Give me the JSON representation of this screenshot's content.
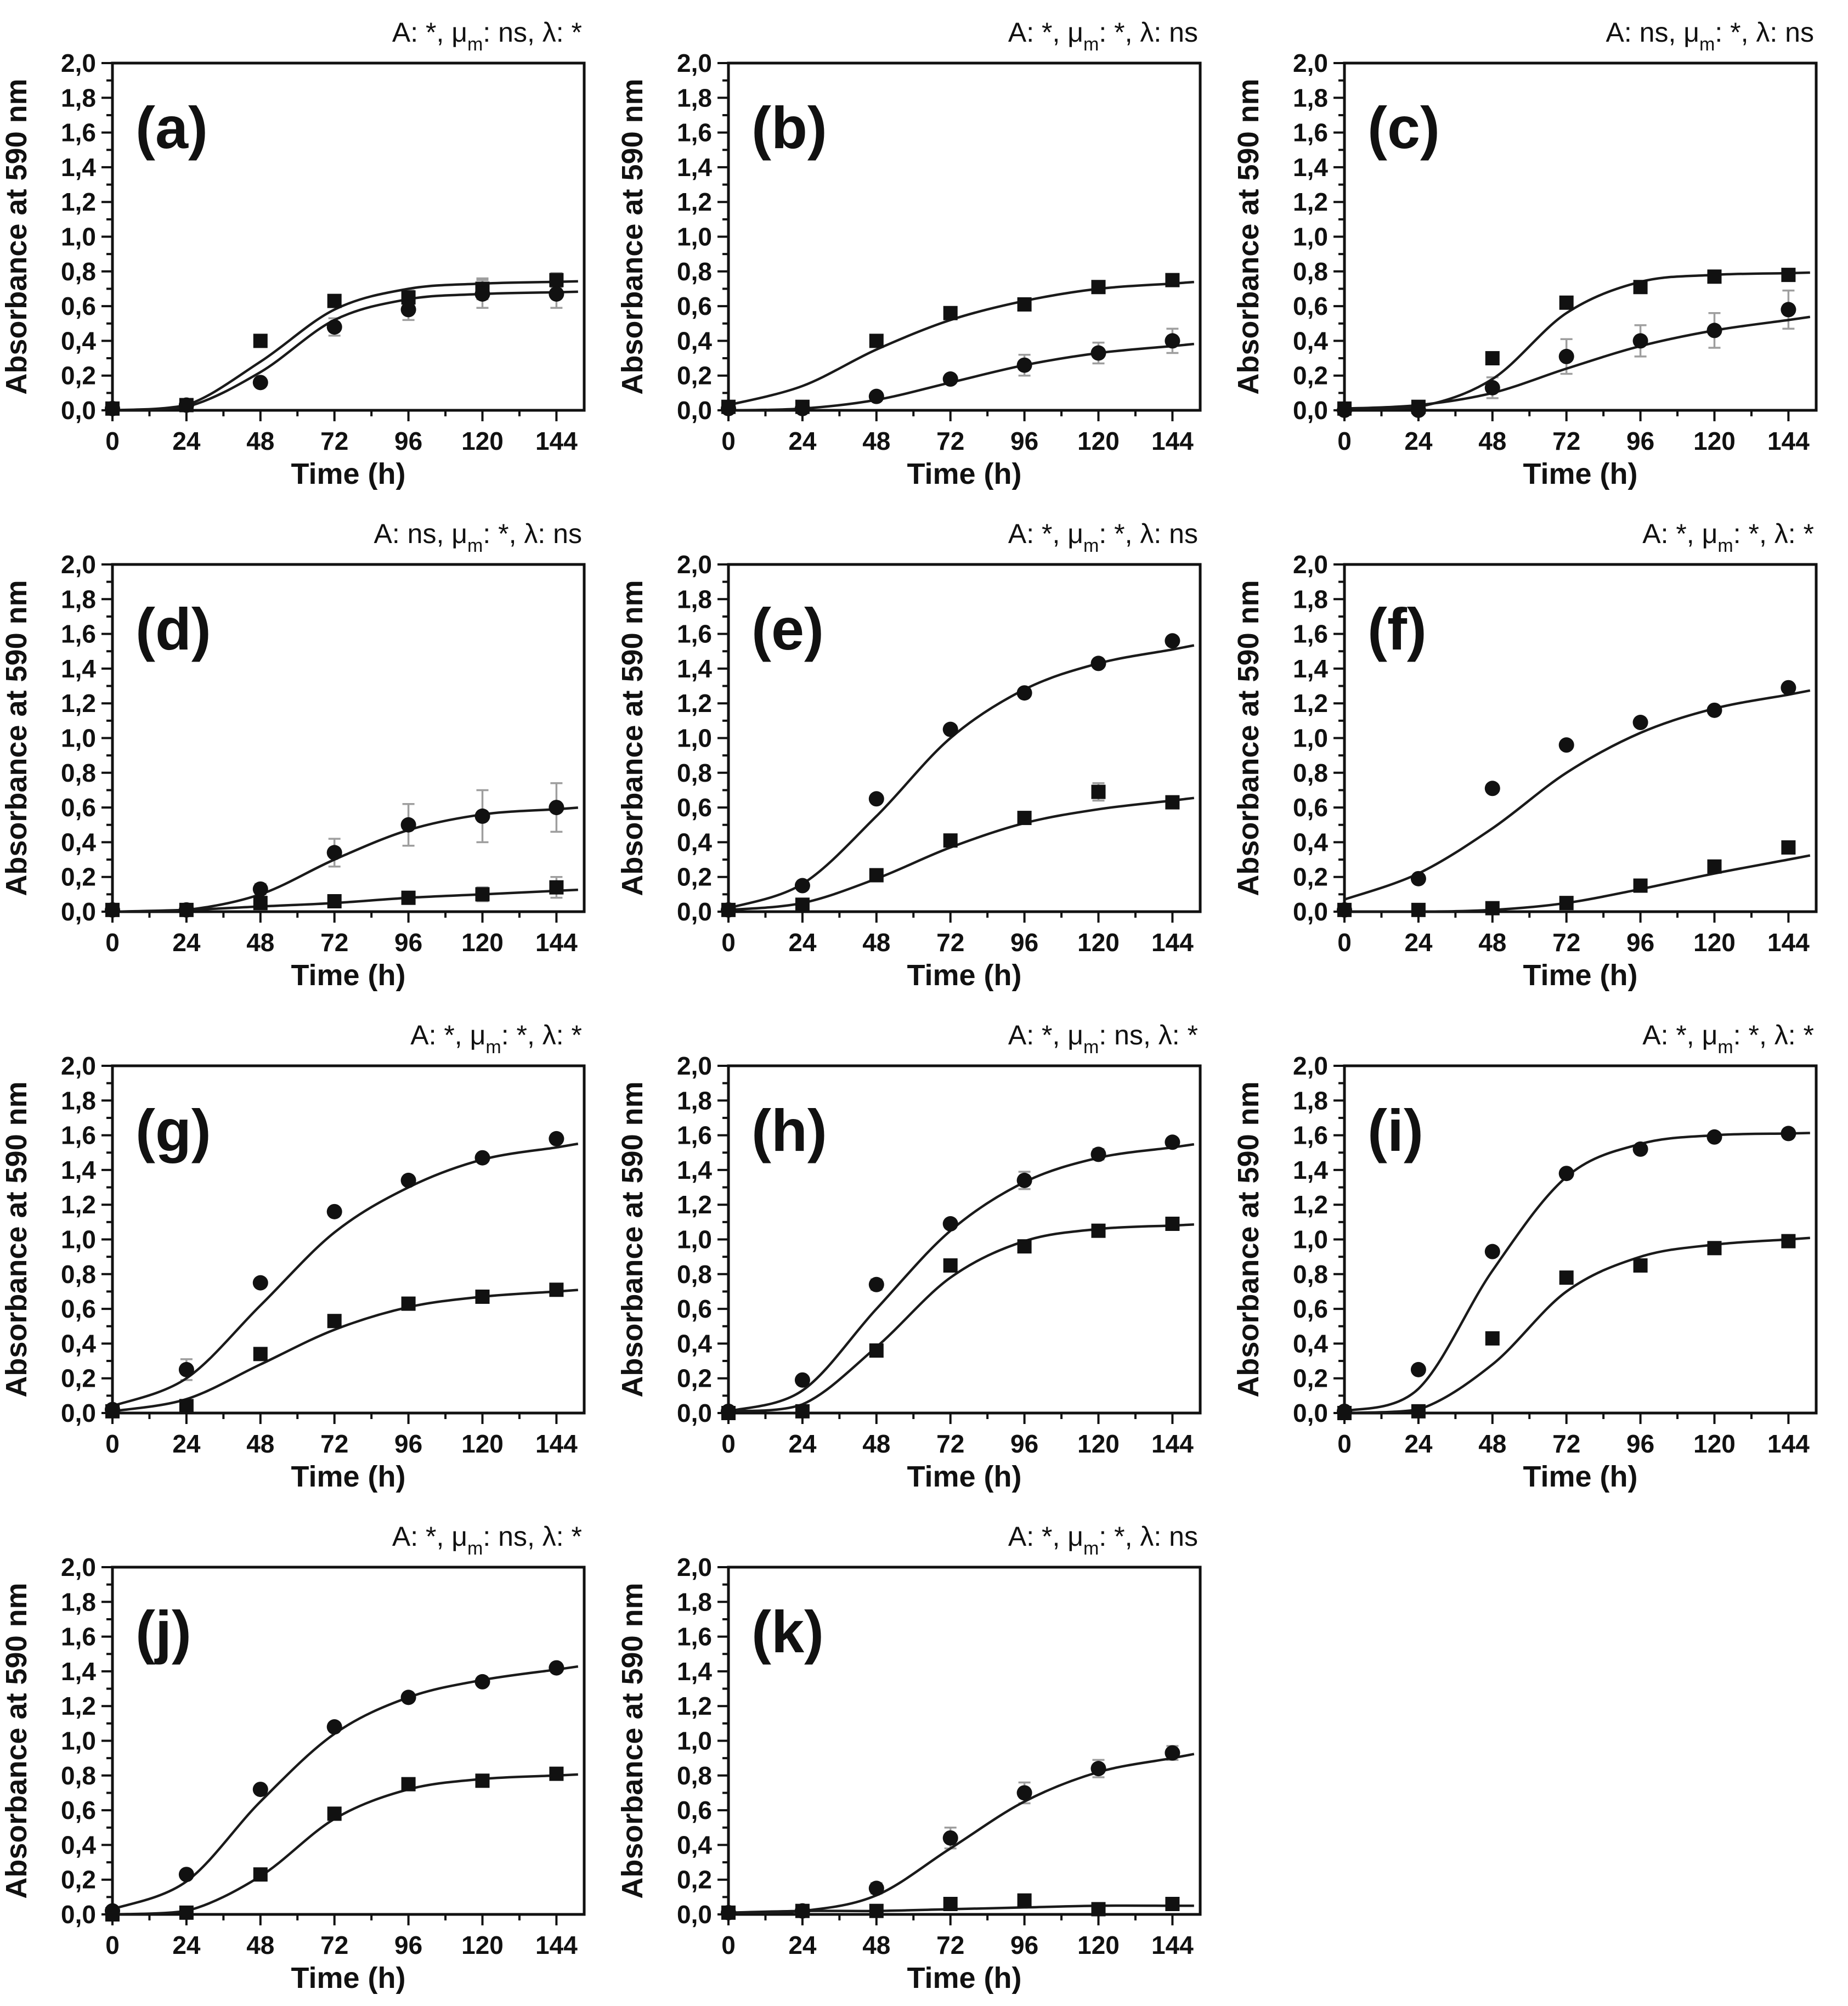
{
  "figure": {
    "background": "#ffffff",
    "ink_color": "#111111",
    "curve_color": "#1a1a1a",
    "error_bar_color": "#9e9e9e",
    "title_parts": {
      "a": "A",
      "mu": "μ",
      "mu_sub": "m",
      "lambda": "λ",
      "colon": ": ",
      "comma": ", "
    },
    "axes": {
      "ylabel": "Absorbance at 590 nm",
      "xlabel": "Time (h)",
      "y_tick_labels": [
        "0,0",
        "0,2",
        "0,4",
        "0,6",
        "0,8",
        "1,0",
        "1,2",
        "1,4",
        "1,6",
        "1,8",
        "2,0"
      ],
      "y_tick_values": [
        0,
        0.2,
        0.4,
        0.6,
        0.8,
        1.0,
        1.2,
        1.4,
        1.6,
        1.8,
        2.0
      ],
      "y_minor_values": [
        0.1,
        0.3,
        0.5,
        0.7,
        0.9,
        1.1,
        1.3,
        1.5,
        1.7,
        1.9
      ],
      "x_tick_labels": [
        "0",
        "24",
        "48",
        "72",
        "96",
        "120",
        "144"
      ],
      "x_tick_values": [
        0,
        24,
        48,
        72,
        96,
        120,
        144
      ],
      "x_minor_values": [
        12,
        36,
        60,
        84,
        108,
        132
      ]
    }
  },
  "chart_data": [
    {
      "type": "scatter",
      "panel": "(a)",
      "grid": [
        0,
        0
      ],
      "title": "A: *, μm: ns, λ: *",
      "significance": {
        "A": "*",
        "mu": "ns",
        "lambda": "*"
      },
      "xlabel": "Time (h)",
      "ylabel": "Absorbance at 590 nm",
      "xlim": [
        0,
        153
      ],
      "ylim": [
        0,
        2
      ],
      "x": [
        0,
        24,
        48,
        72,
        96,
        120,
        144
      ],
      "series": [
        {
          "name": "squares",
          "marker": "square",
          "values": [
            0.01,
            0.03,
            0.4,
            0.63,
            0.65,
            0.7,
            0.75
          ],
          "errors": [
            0,
            0,
            0,
            0,
            0.04,
            0.06,
            0.04
          ],
          "fit_curve": [
            0.0,
            0.03,
            0.28,
            0.58,
            0.7,
            0.73,
            0.74
          ]
        },
        {
          "name": "circles",
          "marker": "circle",
          "values": [
            0.01,
            0.03,
            0.16,
            0.48,
            0.58,
            0.67,
            0.67
          ],
          "errors": [
            0,
            0,
            0.02,
            0.05,
            0.06,
            0.08,
            0.08
          ],
          "fit_curve": [
            0.0,
            0.02,
            0.22,
            0.52,
            0.64,
            0.67,
            0.68
          ]
        }
      ]
    },
    {
      "type": "scatter",
      "panel": "(b)",
      "grid": [
        0,
        1
      ],
      "title": "A: *, μm: *, λ: ns",
      "significance": {
        "A": "*",
        "mu": "*",
        "lambda": "ns"
      },
      "xlabel": "Time (h)",
      "ylabel": "Absorbance at 590 nm",
      "xlim": [
        0,
        153
      ],
      "ylim": [
        0,
        2
      ],
      "x": [
        0,
        24,
        48,
        72,
        96,
        120,
        144
      ],
      "series": [
        {
          "name": "squares",
          "marker": "square",
          "values": [
            0.02,
            0.02,
            0.4,
            0.56,
            0.61,
            0.71,
            0.75
          ],
          "errors": [
            0,
            0,
            0,
            0,
            0.02,
            0,
            0.02
          ],
          "fit_curve": [
            0.03,
            0.14,
            0.35,
            0.52,
            0.63,
            0.7,
            0.73
          ]
        },
        {
          "name": "circles",
          "marker": "circle",
          "values": [
            0.01,
            0.01,
            0.08,
            0.18,
            0.26,
            0.33,
            0.4
          ],
          "errors": [
            0,
            0,
            0.01,
            0.02,
            0.06,
            0.06,
            0.07
          ],
          "fit_curve": [
            0.0,
            0.01,
            0.06,
            0.16,
            0.26,
            0.33,
            0.37
          ]
        }
      ]
    },
    {
      "type": "scatter",
      "panel": "(c)",
      "grid": [
        0,
        2
      ],
      "title": "A: ns, μm: *, λ: ns",
      "significance": {
        "A": "ns",
        "mu": "*",
        "lambda": "ns"
      },
      "xlabel": "Time (h)",
      "ylabel": "Absorbance at 590 nm",
      "xlim": [
        0,
        153
      ],
      "ylim": [
        0,
        2
      ],
      "x": [
        0,
        24,
        48,
        72,
        96,
        120,
        144
      ],
      "series": [
        {
          "name": "squares",
          "marker": "square",
          "values": [
            0.01,
            0.02,
            0.3,
            0.62,
            0.71,
            0.77,
            0.78
          ],
          "errors": [
            0,
            0,
            0.03,
            0.03,
            0.03,
            0.02,
            0.02
          ],
          "fit_curve": [
            0.01,
            0.02,
            0.18,
            0.56,
            0.74,
            0.78,
            0.79
          ]
        },
        {
          "name": "circles",
          "marker": "circle",
          "values": [
            0.0,
            0.0,
            0.13,
            0.31,
            0.4,
            0.46,
            0.58
          ],
          "errors": [
            0,
            0,
            0.06,
            0.1,
            0.09,
            0.1,
            0.11
          ],
          "fit_curve": [
            0.01,
            0.03,
            0.1,
            0.24,
            0.37,
            0.46,
            0.52
          ]
        }
      ]
    },
    {
      "type": "scatter",
      "panel": "(d)",
      "grid": [
        1,
        0
      ],
      "title": "A: ns, μm: *, λ: ns",
      "significance": {
        "A": "ns",
        "mu": "*",
        "lambda": "ns"
      },
      "xlabel": "Time (h)",
      "ylabel": "Absorbance at 590 nm",
      "xlim": [
        0,
        153
      ],
      "ylim": [
        0,
        2
      ],
      "x": [
        0,
        24,
        48,
        72,
        96,
        120,
        144
      ],
      "series": [
        {
          "name": "circles",
          "marker": "circle",
          "values": [
            0.01,
            0.01,
            0.13,
            0.34,
            0.5,
            0.55,
            0.6
          ],
          "errors": [
            0,
            0,
            0.03,
            0.08,
            0.12,
            0.15,
            0.14
          ],
          "fit_curve": [
            0.0,
            0.01,
            0.1,
            0.3,
            0.47,
            0.56,
            0.59
          ]
        },
        {
          "name": "squares",
          "marker": "square",
          "values": [
            0.01,
            0.01,
            0.05,
            0.06,
            0.08,
            0.1,
            0.14
          ],
          "errors": [
            0,
            0,
            0.02,
            0.02,
            0.03,
            0.04,
            0.06
          ],
          "fit_curve": [
            0.0,
            0.01,
            0.03,
            0.05,
            0.08,
            0.1,
            0.12
          ]
        }
      ]
    },
    {
      "type": "scatter",
      "panel": "(e)",
      "grid": [
        1,
        1
      ],
      "title": "A: *, μm: *, λ: ns",
      "significance": {
        "A": "*",
        "mu": "*",
        "lambda": "ns"
      },
      "xlabel": "Time (h)",
      "ylabel": "Absorbance at 590 nm",
      "xlim": [
        0,
        153
      ],
      "ylim": [
        0,
        2
      ],
      "x": [
        0,
        24,
        48,
        72,
        96,
        120,
        144
      ],
      "series": [
        {
          "name": "circles",
          "marker": "circle",
          "values": [
            0.01,
            0.15,
            0.65,
            1.05,
            1.26,
            1.43,
            1.56
          ],
          "errors": [
            0,
            0,
            0,
            0,
            0,
            0,
            0
          ],
          "fit_curve": [
            0.02,
            0.16,
            0.55,
            1.0,
            1.28,
            1.43,
            1.51
          ]
        },
        {
          "name": "squares",
          "marker": "square",
          "values": [
            0.01,
            0.04,
            0.21,
            0.41,
            0.54,
            0.69,
            0.63
          ],
          "errors": [
            0,
            0,
            0,
            0,
            0.02,
            0.05,
            0.02
          ],
          "fit_curve": [
            0.01,
            0.05,
            0.19,
            0.37,
            0.51,
            0.59,
            0.64
          ]
        }
      ]
    },
    {
      "type": "scatter",
      "panel": "(f)",
      "grid": [
        1,
        2
      ],
      "title": "A: *, μm: *, λ: *",
      "significance": {
        "A": "*",
        "mu": "*",
        "lambda": "*"
      },
      "xlabel": "Time (h)",
      "ylabel": "Absorbance at 590 nm",
      "xlim": [
        0,
        153
      ],
      "ylim": [
        0,
        2
      ],
      "x": [
        0,
        24,
        48,
        72,
        96,
        120,
        144
      ],
      "series": [
        {
          "name": "circles",
          "marker": "circle",
          "values": [
            0.01,
            0.19,
            0.71,
            0.96,
            1.09,
            1.16,
            1.29
          ],
          "errors": [
            0,
            0,
            0,
            0,
            0,
            0,
            0
          ],
          "fit_curve": [
            0.07,
            0.22,
            0.48,
            0.8,
            1.03,
            1.17,
            1.25
          ]
        },
        {
          "name": "squares",
          "marker": "square",
          "values": [
            0.01,
            0.01,
            0.02,
            0.05,
            0.15,
            0.26,
            0.37
          ],
          "errors": [
            0,
            0,
            0,
            0,
            0,
            0,
            0
          ],
          "fit_curve": [
            0.0,
            0.0,
            0.01,
            0.05,
            0.13,
            0.22,
            0.3
          ]
        }
      ]
    },
    {
      "type": "scatter",
      "panel": "(g)",
      "grid": [
        2,
        0
      ],
      "title": "A: *, μm: *, λ: *",
      "significance": {
        "A": "*",
        "mu": "*",
        "lambda": "*"
      },
      "xlabel": "Time (h)",
      "ylabel": "Absorbance at 590 nm",
      "xlim": [
        0,
        153
      ],
      "ylim": [
        0,
        2
      ],
      "x": [
        0,
        24,
        48,
        72,
        96,
        120,
        144
      ],
      "series": [
        {
          "name": "circles",
          "marker": "circle",
          "values": [
            0.02,
            0.25,
            0.75,
            1.16,
            1.34,
            1.47,
            1.58
          ],
          "errors": [
            0,
            0.06,
            0.02,
            0,
            0,
            0,
            0
          ],
          "fit_curve": [
            0.04,
            0.2,
            0.62,
            1.04,
            1.3,
            1.46,
            1.53
          ]
        },
        {
          "name": "squares",
          "marker": "square",
          "values": [
            0.01,
            0.04,
            0.34,
            0.53,
            0.63,
            0.67,
            0.71
          ],
          "errors": [
            0,
            0,
            0,
            0,
            0,
            0,
            0
          ],
          "fit_curve": [
            0.01,
            0.08,
            0.28,
            0.48,
            0.61,
            0.67,
            0.7
          ]
        }
      ]
    },
    {
      "type": "scatter",
      "panel": "(h)",
      "grid": [
        2,
        1
      ],
      "title": "A: *, μm: ns, λ: *",
      "significance": {
        "A": "*",
        "mu": "ns",
        "lambda": "*"
      },
      "xlabel": "Time (h)",
      "ylabel": "Absorbance at 590 nm",
      "xlim": [
        0,
        153
      ],
      "ylim": [
        0,
        2
      ],
      "x": [
        0,
        24,
        48,
        72,
        96,
        120,
        144
      ],
      "series": [
        {
          "name": "circles",
          "marker": "circle",
          "values": [
            0.01,
            0.19,
            0.74,
            1.09,
            1.34,
            1.49,
            1.56
          ],
          "errors": [
            0,
            0,
            0.03,
            0.02,
            0.05,
            0.03,
            0.02
          ],
          "fit_curve": [
            0.01,
            0.13,
            0.6,
            1.05,
            1.33,
            1.47,
            1.53
          ]
        },
        {
          "name": "squares",
          "marker": "square",
          "values": [
            0.0,
            0.01,
            0.36,
            0.85,
            0.96,
            1.05,
            1.09
          ],
          "errors": [
            0,
            0,
            0,
            0,
            0,
            0,
            0
          ],
          "fit_curve": [
            0.01,
            0.05,
            0.38,
            0.78,
            0.99,
            1.06,
            1.08
          ]
        }
      ]
    },
    {
      "type": "scatter",
      "panel": "(i)",
      "grid": [
        2,
        2
      ],
      "title": "A: *, μm: *, λ: *",
      "significance": {
        "A": "*",
        "mu": "*",
        "lambda": "*"
      },
      "xlabel": "Time (h)",
      "ylabel": "Absorbance at 590 nm",
      "xlim": [
        0,
        153
      ],
      "ylim": [
        0,
        2
      ],
      "x": [
        0,
        24,
        48,
        72,
        96,
        120,
        144
      ],
      "series": [
        {
          "name": "circles",
          "marker": "circle",
          "values": [
            0.01,
            0.25,
            0.93,
            1.38,
            1.52,
            1.59,
            1.61
          ],
          "errors": [
            0,
            0,
            0,
            0,
            0,
            0,
            0
          ],
          "fit_curve": [
            0.01,
            0.14,
            0.82,
            1.36,
            1.55,
            1.6,
            1.61
          ]
        },
        {
          "name": "squares",
          "marker": "square",
          "values": [
            0.0,
            0.01,
            0.43,
            0.78,
            0.85,
            0.95,
            0.99
          ],
          "errors": [
            0,
            0,
            0,
            0,
            0,
            0,
            0
          ],
          "fit_curve": [
            0.0,
            0.02,
            0.28,
            0.7,
            0.9,
            0.97,
            1.0
          ]
        }
      ]
    },
    {
      "type": "scatter",
      "panel": "(j)",
      "grid": [
        3,
        0
      ],
      "title": "A: *, μm: ns, λ: *",
      "significance": {
        "A": "*",
        "mu": "ns",
        "lambda": "*"
      },
      "xlabel": "Time (h)",
      "ylabel": "Absorbance at 590 nm",
      "xlim": [
        0,
        153
      ],
      "ylim": [
        0,
        2
      ],
      "x": [
        0,
        24,
        48,
        72,
        96,
        120,
        144
      ],
      "series": [
        {
          "name": "circles",
          "marker": "circle",
          "values": [
            0.02,
            0.23,
            0.72,
            1.08,
            1.25,
            1.34,
            1.42
          ],
          "errors": [
            0,
            0,
            0,
            0,
            0,
            0,
            0
          ],
          "fit_curve": [
            0.03,
            0.19,
            0.65,
            1.04,
            1.25,
            1.35,
            1.41
          ]
        },
        {
          "name": "squares",
          "marker": "square",
          "values": [
            0.0,
            0.01,
            0.23,
            0.58,
            0.75,
            0.77,
            0.81
          ],
          "errors": [
            0,
            0,
            0,
            0,
            0,
            0,
            0
          ],
          "fit_curve": [
            0.0,
            0.02,
            0.22,
            0.55,
            0.72,
            0.78,
            0.8
          ]
        }
      ]
    },
    {
      "type": "scatter",
      "panel": "(k)",
      "grid": [
        3,
        1
      ],
      "title": "A: *, μm: *, λ: ns",
      "significance": {
        "A": "*",
        "mu": "*",
        "lambda": "ns"
      },
      "xlabel": "Time (h)",
      "ylabel": "Absorbance at 590 nm",
      "xlim": [
        0,
        153
      ],
      "ylim": [
        0,
        2
      ],
      "x": [
        0,
        24,
        48,
        72,
        96,
        120,
        144
      ],
      "series": [
        {
          "name": "circles",
          "marker": "circle",
          "values": [
            0.01,
            0.02,
            0.15,
            0.44,
            0.7,
            0.84,
            0.93
          ],
          "errors": [
            0,
            0,
            0.03,
            0.06,
            0.06,
            0.05,
            0.04
          ],
          "fit_curve": [
            0.01,
            0.02,
            0.11,
            0.38,
            0.65,
            0.82,
            0.9
          ]
        },
        {
          "name": "squares",
          "marker": "square",
          "values": [
            0.01,
            0.02,
            0.02,
            0.06,
            0.08,
            0.03,
            0.06
          ],
          "errors": [
            0,
            0,
            0,
            0,
            0,
            0,
            0
          ],
          "fit_curve": [
            0.01,
            0.02,
            0.02,
            0.03,
            0.04,
            0.05,
            0.05
          ]
        }
      ]
    }
  ]
}
